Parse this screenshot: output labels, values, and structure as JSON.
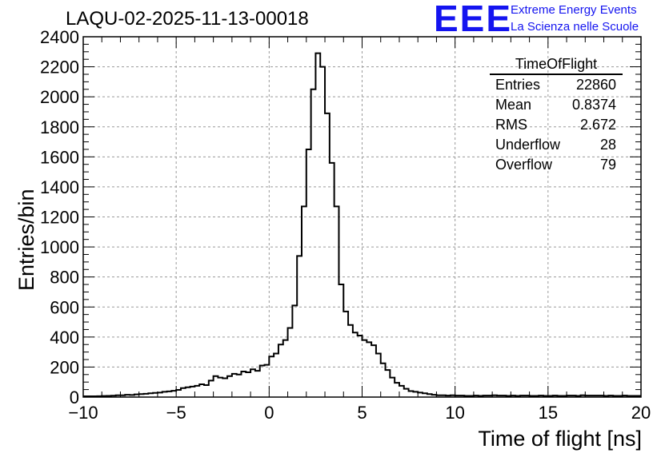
{
  "header": {
    "title": "LAQU-02-2025-11-13-00018",
    "logo_text": "EEE",
    "logo_line1": "Extreme Energy Events",
    "logo_line2": "La Scienza nelle Scuole"
  },
  "stats": {
    "title": "TimeOfFlight",
    "rows": [
      {
        "label": "Entries",
        "value": "22860"
      },
      {
        "label": "Mean",
        "value": "0.8374"
      },
      {
        "label": "RMS",
        "value": "2.672"
      },
      {
        "label": "Underflow",
        "value": "28"
      },
      {
        "label": "Overflow",
        "value": "79"
      }
    ]
  },
  "colors": {
    "line": "#000000",
    "grid": "#9a9a9a",
    "logo": "#1414f0"
  },
  "chart_data": {
    "type": "histogram",
    "title": "LAQU-02-2025-11-13-00018",
    "xlabel": "Time of flight [ns]",
    "ylabel": "Entries/bin",
    "xlim": [
      -10,
      20
    ],
    "ylim": [
      0,
      2400
    ],
    "xticks": [
      -10,
      -5,
      0,
      5,
      10,
      15,
      20
    ],
    "yticks": [
      0,
      200,
      400,
      600,
      800,
      1000,
      1200,
      1400,
      1600,
      1800,
      2000,
      2200,
      2400
    ],
    "grid": true,
    "bin_width": 0.25,
    "bin_start": -10,
    "values": [
      5,
      5,
      5,
      6,
      7,
      8,
      9,
      12,
      12,
      15,
      14,
      18,
      20,
      22,
      25,
      28,
      30,
      35,
      38,
      42,
      48,
      60,
      65,
      70,
      75,
      85,
      80,
      110,
      140,
      130,
      125,
      140,
      155,
      150,
      170,
      165,
      185,
      175,
      210,
      215,
      270,
      290,
      350,
      380,
      460,
      610,
      940,
      1270,
      1650,
      2050,
      2290,
      2200,
      1890,
      1560,
      1270,
      750,
      570,
      480,
      430,
      410,
      380,
      365,
      345,
      290,
      225,
      180,
      130,
      95,
      75,
      55,
      40,
      35,
      30,
      25,
      20,
      15,
      12,
      12,
      10,
      12,
      10,
      10,
      8,
      8,
      10,
      8,
      10,
      10,
      12,
      10,
      10,
      8,
      10,
      8,
      10,
      10,
      8,
      8,
      10,
      8,
      8,
      10,
      8,
      8,
      10,
      10,
      8,
      12,
      10,
      10,
      10,
      10,
      8,
      10,
      8,
      8,
      10,
      8,
      8,
      8
    ]
  }
}
